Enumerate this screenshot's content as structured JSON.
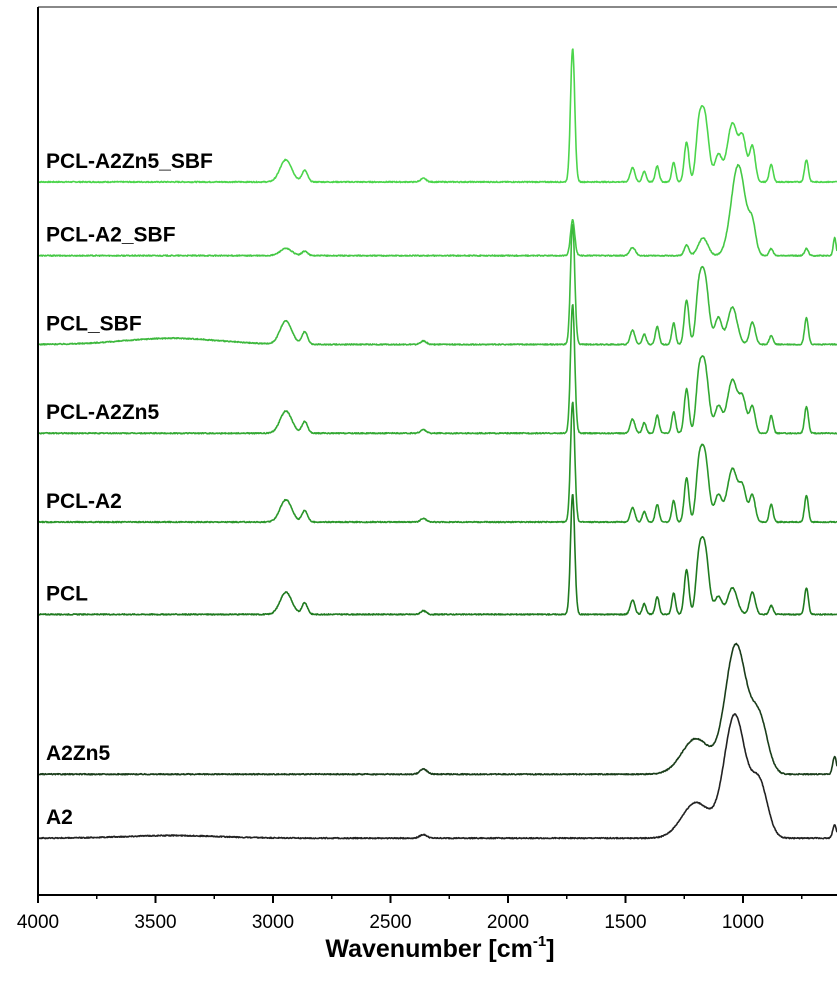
{
  "chart_data": {
    "type": "line",
    "title": "",
    "xlabel": "Wavenumber [cm",
    "xlabel_sup": "-1",
    "xlabel_end": "]",
    "ylabel": "",
    "xlim": [
      4000,
      600
    ],
    "x_ticks": [
      {
        "value": 4000,
        "label": "4000"
      },
      {
        "value": 3500,
        "label": "3500"
      },
      {
        "value": 3000,
        "label": "3000"
      },
      {
        "value": 2500,
        "label": "2500"
      },
      {
        "value": 2000,
        "label": "2000"
      },
      {
        "value": 1500,
        "label": "1500"
      },
      {
        "value": 1000,
        "label": "1000"
      }
    ],
    "grid": false,
    "legend": "none",
    "series": [
      {
        "name": "PCL-A2Zn5_SBF",
        "color": "#4cd54c",
        "baseline": 0.803,
        "peaks": [
          [
            2945,
            0.025,
            25
          ],
          [
            2865,
            0.013,
            12
          ],
          [
            2360,
            0.004,
            12
          ],
          [
            1725,
            0.15,
            9
          ],
          [
            1470,
            0.016,
            10
          ],
          [
            1420,
            0.012,
            8
          ],
          [
            1365,
            0.018,
            8
          ],
          [
            1295,
            0.022,
            8
          ],
          [
            1240,
            0.045,
            10
          ],
          [
            1190,
            0.04,
            12
          ],
          [
            1165,
            0.078,
            18
          ],
          [
            1105,
            0.03,
            15
          ],
          [
            1045,
            0.066,
            22
          ],
          [
            1000,
            0.045,
            15
          ],
          [
            960,
            0.04,
            12
          ],
          [
            880,
            0.02,
            8
          ],
          [
            730,
            0.025,
            8
          ]
        ]
      },
      {
        "name": "PCL-A2_SBF",
        "color": "#45c845",
        "baseline": 0.72,
        "peaks": [
          [
            2945,
            0.008,
            25
          ],
          [
            2865,
            0.005,
            12
          ],
          [
            1725,
            0.04,
            9
          ],
          [
            1470,
            0.009,
            12
          ],
          [
            1240,
            0.012,
            10
          ],
          [
            1170,
            0.02,
            20
          ],
          [
            1020,
            0.102,
            30
          ],
          [
            960,
            0.03,
            15
          ],
          [
            880,
            0.008,
            8
          ],
          [
            730,
            0.008,
            8
          ],
          [
            610,
            0.02,
            6
          ]
        ]
      },
      {
        "name": "PCL_SBF",
        "color": "#3db83d",
        "baseline": 0.62,
        "peaks": [
          [
            3430,
            0.007,
            200
          ],
          [
            2945,
            0.026,
            25
          ],
          [
            2865,
            0.014,
            12
          ],
          [
            2360,
            0.004,
            12
          ],
          [
            1725,
            0.135,
            9
          ],
          [
            1470,
            0.016,
            10
          ],
          [
            1420,
            0.012,
            8
          ],
          [
            1365,
            0.02,
            8
          ],
          [
            1295,
            0.024,
            8
          ],
          [
            1240,
            0.05,
            10
          ],
          [
            1190,
            0.04,
            12
          ],
          [
            1165,
            0.08,
            18
          ],
          [
            1105,
            0.03,
            15
          ],
          [
            1045,
            0.042,
            20
          ],
          [
            960,
            0.025,
            12
          ],
          [
            880,
            0.01,
            8
          ],
          [
            730,
            0.03,
            8
          ]
        ]
      },
      {
        "name": "PCL-A2Zn5",
        "color": "#32a832",
        "baseline": 0.52,
        "peaks": [
          [
            2945,
            0.025,
            25
          ],
          [
            2865,
            0.013,
            12
          ],
          [
            2360,
            0.004,
            12
          ],
          [
            1725,
            0.145,
            9
          ],
          [
            1470,
            0.016,
            10
          ],
          [
            1420,
            0.012,
            8
          ],
          [
            1365,
            0.02,
            8
          ],
          [
            1295,
            0.024,
            8
          ],
          [
            1240,
            0.05,
            10
          ],
          [
            1190,
            0.04,
            12
          ],
          [
            1165,
            0.08,
            18
          ],
          [
            1105,
            0.03,
            15
          ],
          [
            1045,
            0.06,
            22
          ],
          [
            1000,
            0.035,
            15
          ],
          [
            960,
            0.03,
            12
          ],
          [
            880,
            0.02,
            8
          ],
          [
            730,
            0.03,
            8
          ]
        ]
      },
      {
        "name": "PCL-A2",
        "color": "#2a962a",
        "baseline": 0.42,
        "peaks": [
          [
            2945,
            0.025,
            25
          ],
          [
            2865,
            0.013,
            12
          ],
          [
            2360,
            0.004,
            12
          ],
          [
            1725,
            0.135,
            9
          ],
          [
            1470,
            0.016,
            10
          ],
          [
            1420,
            0.012,
            8
          ],
          [
            1365,
            0.02,
            8
          ],
          [
            1295,
            0.024,
            8
          ],
          [
            1240,
            0.05,
            10
          ],
          [
            1190,
            0.04,
            12
          ],
          [
            1165,
            0.08,
            18
          ],
          [
            1105,
            0.03,
            15
          ],
          [
            1045,
            0.06,
            22
          ],
          [
            1000,
            0.035,
            15
          ],
          [
            960,
            0.03,
            12
          ],
          [
            880,
            0.02,
            8
          ],
          [
            730,
            0.03,
            8
          ]
        ]
      },
      {
        "name": "PCL",
        "color": "#1f7a1f",
        "baseline": 0.316,
        "peaks": [
          [
            2945,
            0.025,
            25
          ],
          [
            2865,
            0.013,
            12
          ],
          [
            2360,
            0.004,
            12
          ],
          [
            1725,
            0.135,
            9
          ],
          [
            1470,
            0.016,
            10
          ],
          [
            1420,
            0.012,
            8
          ],
          [
            1365,
            0.02,
            8
          ],
          [
            1295,
            0.024,
            8
          ],
          [
            1240,
            0.05,
            10
          ],
          [
            1190,
            0.04,
            12
          ],
          [
            1165,
            0.08,
            18
          ],
          [
            1105,
            0.02,
            15
          ],
          [
            1045,
            0.03,
            20
          ],
          [
            960,
            0.025,
            12
          ],
          [
            880,
            0.01,
            8
          ],
          [
            730,
            0.03,
            8
          ]
        ]
      },
      {
        "name": "A2Zn5",
        "color": "#1a3d1a",
        "baseline": 0.136,
        "peaks": [
          [
            2360,
            0.006,
            15
          ],
          [
            1200,
            0.04,
            60
          ],
          [
            1030,
            0.145,
            45
          ],
          [
            930,
            0.06,
            35
          ],
          [
            610,
            0.02,
            8
          ]
        ]
      },
      {
        "name": "A2",
        "color": "#222222",
        "baseline": 0.064,
        "peaks": [
          [
            3430,
            0.003,
            200
          ],
          [
            2360,
            0.004,
            15
          ],
          [
            1200,
            0.04,
            60
          ],
          [
            1035,
            0.138,
            45
          ],
          [
            930,
            0.06,
            35
          ],
          [
            610,
            0.015,
            8
          ]
        ]
      }
    ]
  }
}
